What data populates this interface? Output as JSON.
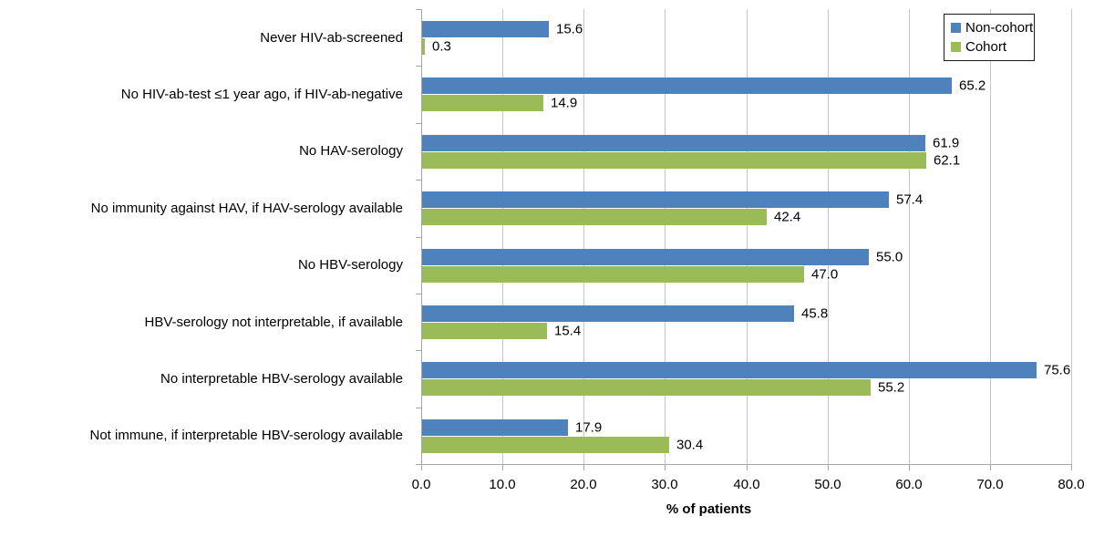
{
  "chart_data": {
    "type": "bar",
    "orientation": "horizontal",
    "title": "",
    "xlabel": "% of patients",
    "xlim": [
      0,
      80
    ],
    "xticks": [
      0,
      10,
      20,
      30,
      40,
      50,
      60,
      70,
      80
    ],
    "xtick_labels": [
      "0.0",
      "10.0",
      "20.0",
      "30.0",
      "40.0",
      "50.0",
      "60.0",
      "70.0",
      "80.0"
    ],
    "grid": "vertical",
    "legend_position": "top-right",
    "categories": [
      "Never HIV-ab-screened",
      "No HIV-ab-test ≤1 year ago, if HIV-ab-negative",
      "No HAV-serology",
      "No immunity against HAV, if HAV-serology available",
      "No HBV-serology",
      "HBV-serology not interpretable, if available",
      "No interpretable HBV-serology available",
      "Not immune, if interpretable HBV-serology available"
    ],
    "series": [
      {
        "name": "Non-cohort",
        "color": "#4F81BD",
        "values": [
          15.6,
          65.2,
          61.9,
          57.4,
          55.0,
          45.8,
          75.6,
          17.9
        ],
        "labels": [
          "15.6",
          "65.2",
          "61.9",
          "57.4",
          "55.0",
          "45.8",
          "75.6",
          "17.9"
        ]
      },
      {
        "name": "Cohort",
        "color": "#9BBB59",
        "values": [
          0.3,
          14.9,
          62.1,
          42.4,
          47.0,
          15.4,
          55.2,
          30.4
        ],
        "labels": [
          "0.3",
          "14.9",
          "62.1",
          "42.4",
          "47.0",
          "15.4",
          "55.2",
          "30.4"
        ]
      }
    ]
  },
  "colors": {
    "gridline": "#C6C6C6",
    "axis_line": "#A6A6A6",
    "text": "#000000",
    "background": "#FFFFFF",
    "legend_border": "#1A1A1A"
  }
}
